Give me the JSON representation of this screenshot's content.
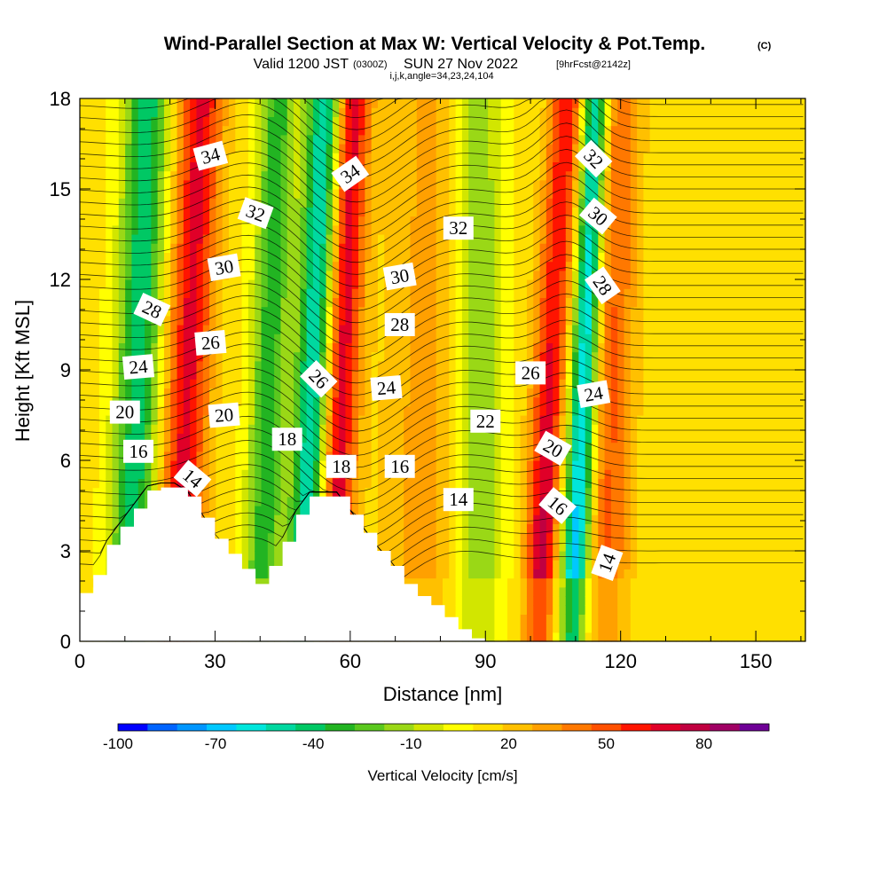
{
  "chart_data": {
    "type": "heatmap",
    "title": "Wind-Parallel Section at Max W: Vertical Velocity & Pot.Temp.",
    "title_mark": "(C)",
    "subtitle_left": "Valid 1200 JST",
    "subtitle_z": "(0300Z)",
    "subtitle_date": "SUN 27 Nov 2022",
    "subtitle_fcst": "[9hrFcst@2142z]",
    "subtitle_small": "i,j,k,angle=34,23,24,104",
    "xlabel": "Distance [nm]",
    "ylabel": "Height [Kft MSL]",
    "xlim": [
      0,
      161
    ],
    "ylim": [
      0,
      18
    ],
    "x_ticks": [
      0,
      30,
      60,
      90,
      120,
      150
    ],
    "y_ticks": [
      0,
      3,
      6,
      9,
      12,
      15,
      18
    ],
    "colorbar": {
      "label": "Vertical Velocity [cm/s]",
      "range": [
        -100,
        100
      ],
      "tick_values": [
        -100,
        -70,
        -40,
        -10,
        20,
        50,
        80
      ],
      "tick_labels": [
        "-100",
        "-70",
        "-40",
        "-10",
        "20",
        "50",
        "80"
      ],
      "colors": [
        "#0000ff",
        "#0064ff",
        "#0096ff",
        "#00c8ff",
        "#00e6dc",
        "#00d8a0",
        "#00c864",
        "#22b422",
        "#5ac81e",
        "#9ad816",
        "#d2e600",
        "#ffff00",
        "#ffe000",
        "#ffc000",
        "#ffa000",
        "#ff7800",
        "#ff5000",
        "#ff1400",
        "#e00028",
        "#c00040",
        "#a00064",
        "#6e0096"
      ]
    },
    "updraft_bands": [
      {
        "x": 24,
        "w": 5,
        "tilt": 6,
        "amp": 55
      },
      {
        "x": 58,
        "w": 4,
        "tilt": 5,
        "amp": 60
      },
      {
        "x": 105,
        "w": 4,
        "tilt": 5,
        "amp": 90
      },
      {
        "x": 118,
        "w": 5,
        "tilt": 3,
        "amp": 35
      },
      {
        "x": 78,
        "w": 10,
        "tilt": 4,
        "amp": 20
      }
    ],
    "downdraft_bands": [
      {
        "x": 13,
        "w": 5,
        "tilt": 4,
        "amp": -55
      },
      {
        "x": 42,
        "w": 4,
        "tilt": 4,
        "amp": -45
      },
      {
        "x": 52,
        "w": 4,
        "tilt": 5,
        "amp": -70
      },
      {
        "x": 112,
        "w": 3,
        "tilt": 5,
        "amp": -80
      },
      {
        "x": 88,
        "w": 6,
        "tilt": 0,
        "amp": -35
      },
      {
        "x": 106,
        "w": 4,
        "tilt": 1,
        "amp": -40
      }
    ],
    "terrain_x": [
      0,
      3,
      6,
      9,
      12,
      15,
      18,
      21,
      24,
      27,
      30,
      33,
      36,
      39,
      42,
      45,
      48,
      51,
      54,
      57,
      60,
      63,
      66,
      69,
      72,
      75,
      78,
      81,
      84,
      87,
      90,
      161
    ],
    "terrain_height_kft": [
      1.6,
      2.2,
      3.2,
      3.8,
      4.4,
      5.0,
      5.1,
      5.1,
      4.8,
      4.1,
      3.4,
      2.9,
      2.4,
      1.9,
      2.5,
      3.3,
      4.2,
      4.8,
      4.8,
      4.8,
      4.2,
      3.6,
      3.0,
      2.5,
      1.9,
      1.5,
      1.2,
      0.8,
      0.4,
      0.1,
      0.0,
      0.0
    ],
    "theta_labels": [
      {
        "text": "34",
        "x": 29,
        "y": 16.1,
        "rot": -15
      },
      {
        "text": "34",
        "x": 60,
        "y": 15.5,
        "rot": -35
      },
      {
        "text": "32",
        "x": 39,
        "y": 14.2,
        "rot": 20
      },
      {
        "text": "32",
        "x": 84,
        "y": 13.7,
        "rot": 0
      },
      {
        "text": "32",
        "x": 114,
        "y": 16.0,
        "rot": 45
      },
      {
        "text": "30",
        "x": 32,
        "y": 12.4,
        "rot": -10
      },
      {
        "text": "30",
        "x": 71,
        "y": 12.1,
        "rot": -10
      },
      {
        "text": "30",
        "x": 115,
        "y": 14.1,
        "rot": 40
      },
      {
        "text": "28",
        "x": 16,
        "y": 11.0,
        "rot": 25
      },
      {
        "text": "28",
        "x": 71,
        "y": 10.5,
        "rot": 0
      },
      {
        "text": "28",
        "x": 116,
        "y": 11.8,
        "rot": 55
      },
      {
        "text": "26",
        "x": 29,
        "y": 9.9,
        "rot": -5
      },
      {
        "text": "26",
        "x": 53,
        "y": 8.7,
        "rot": 45
      },
      {
        "text": "26",
        "x": 100,
        "y": 8.9,
        "rot": 0
      },
      {
        "text": "24",
        "x": 13,
        "y": 9.1,
        "rot": -5
      },
      {
        "text": "24",
        "x": 68,
        "y": 8.4,
        "rot": -5
      },
      {
        "text": "24",
        "x": 114,
        "y": 8.2,
        "rot": -10
      },
      {
        "text": "22",
        "x": 90,
        "y": 7.3,
        "rot": 0
      },
      {
        "text": "20",
        "x": 10,
        "y": 7.6,
        "rot": 0
      },
      {
        "text": "20",
        "x": 32,
        "y": 7.5,
        "rot": -5
      },
      {
        "text": "20",
        "x": 105,
        "y": 6.4,
        "rot": 30
      },
      {
        "text": "18",
        "x": 46,
        "y": 6.7,
        "rot": 0
      },
      {
        "text": "18",
        "x": 58,
        "y": 5.8,
        "rot": 0
      },
      {
        "text": "16",
        "x": 13,
        "y": 6.3,
        "rot": 0
      },
      {
        "text": "16",
        "x": 71,
        "y": 5.8,
        "rot": 0
      },
      {
        "text": "16",
        "x": 106,
        "y": 4.5,
        "rot": 40
      },
      {
        "text": "14",
        "x": 25,
        "y": 5.4,
        "rot": 40
      },
      {
        "text": "14",
        "x": 84,
        "y": 4.7,
        "rot": 0
      },
      {
        "text": "14",
        "x": 117,
        "y": 2.6,
        "rot": -70
      }
    ]
  }
}
